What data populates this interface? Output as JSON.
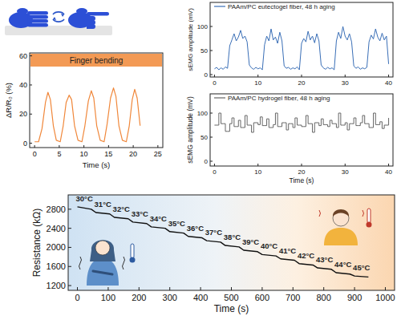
{
  "chart_data": [
    {
      "type": "line",
      "annotation": "Finger bending",
      "x_label": "Time (s)",
      "y_label": "ΔR/R₀ (%)",
      "xlim": [
        -1,
        26
      ],
      "xticks": [
        0,
        5,
        10,
        15,
        20,
        25
      ],
      "ylim": [
        -3,
        62
      ],
      "yticks": [
        0,
        20,
        40,
        60
      ],
      "series": [
        {
          "color": "#f0873a",
          "x": [
            0,
            0.8,
            1.5,
            2.2,
            2.7,
            3.2,
            3.8,
            4.4,
            5.2,
            5.8,
            6.4,
            7.0,
            7.5,
            8.1,
            8.8,
            9.6,
            10.2,
            10.9,
            11.5,
            12.0,
            12.6,
            13.3,
            14.1,
            14.7,
            15.4,
            16.0,
            16.5,
            17.1,
            17.8,
            18.6,
            19.2,
            19.8,
            20.3,
            20.8,
            21.4
          ],
          "values": [
            1,
            1,
            10,
            28,
            35,
            30,
            12,
            2,
            1,
            12,
            28,
            33,
            30,
            12,
            2,
            1,
            12,
            29,
            36,
            31,
            12,
            2,
            1,
            13,
            31,
            38,
            32,
            12,
            2,
            1,
            12,
            30,
            37,
            31,
            12
          ]
        }
      ]
    },
    {
      "type": "line",
      "y_label": "sEMG amplitude (mV)",
      "legend": "upper left",
      "xlim": [
        -1,
        41
      ],
      "xticks": [
        0,
        10,
        20,
        30,
        40
      ],
      "ylim": [
        -5,
        150
      ],
      "yticks": [
        0,
        50,
        100
      ],
      "series": [
        {
          "name": "PAAm/PC eutectogel fiber, 48 h aging",
          "color": "#3a6fb7",
          "x": [
            0,
            0.5,
            1,
            1.5,
            2,
            2.5,
            3,
            3.5,
            4,
            4.5,
            5,
            5.5,
            6,
            6.5,
            7,
            7.5,
            8,
            8.5,
            9,
            9.5,
            10,
            10.5,
            11,
            11.5,
            12,
            12.5,
            13,
            13.5,
            14,
            14.5,
            15,
            15.5,
            16,
            16.5,
            17,
            17.5,
            18,
            18.5,
            19,
            19.5,
            20,
            20.5,
            21,
            21.5,
            22,
            22.5,
            23,
            23.5,
            24,
            24.5,
            25,
            25.5,
            26,
            26.5,
            27,
            27.5,
            28,
            28.5,
            29,
            29.5,
            30,
            30.5,
            31,
            31.5,
            32,
            32.5,
            33,
            33.5,
            34,
            34.5,
            35,
            35.5,
            36,
            36.5,
            37,
            37.5,
            38,
            38.5,
            39,
            39.5,
            40
          ],
          "values": [
            12,
            15,
            10,
            14,
            11,
            16,
            13,
            60,
            72,
            85,
            70,
            78,
            92,
            75,
            80,
            68,
            20,
            14,
            11,
            15,
            12,
            14,
            10,
            62,
            80,
            70,
            95,
            72,
            78,
            65,
            88,
            70,
            18,
            13,
            15,
            11,
            14,
            12,
            16,
            10,
            65,
            75,
            68,
            90,
            72,
            80,
            66,
            85,
            70,
            20,
            14,
            11,
            15,
            12,
            14,
            10,
            70,
            88,
            75,
            100,
            80,
            72,
            85,
            68,
            18,
            13,
            16,
            11,
            14,
            12,
            15,
            68,
            82,
            74,
            95,
            78,
            70,
            86,
            72,
            80,
            22
          ]
        }
      ]
    },
    {
      "type": "line",
      "x_label": "Time (s)",
      "y_label": "sEMG amplitude (mV)",
      "legend": "upper left",
      "xlim": [
        -1,
        41
      ],
      "xticks": [
        0,
        10,
        20,
        30,
        40
      ],
      "ylim": [
        -10,
        140
      ],
      "yticks": [
        0,
        50,
        100
      ],
      "series": [
        {
          "name": "PAAm/PC hydrogel fiber, 48 h aging",
          "color": "#666666",
          "line_style": "step",
          "x": [
            0,
            0.5,
            1,
            1.5,
            2,
            2.5,
            3,
            3.5,
            4,
            4.5,
            5,
            5.5,
            6,
            6.5,
            7,
            7.5,
            8,
            8.5,
            9,
            9.5,
            10,
            10.5,
            11,
            11.5,
            12,
            12.5,
            13,
            13.5,
            14,
            14.5,
            15,
            15.5,
            16,
            16.5,
            17,
            17.5,
            18,
            18.5,
            19,
            19.5,
            20,
            20.5,
            21,
            21.5,
            22,
            22.5,
            23,
            23.5,
            24,
            24.5,
            25,
            25.5,
            26,
            26.5,
            27,
            27.5,
            28,
            28.5,
            29,
            29.5,
            30,
            30.5,
            31,
            31.5,
            32,
            32.5,
            33,
            33.5,
            34,
            34.5,
            35,
            35.5,
            36,
            36.5,
            37,
            37.5,
            38,
            38.5,
            39,
            39.5,
            40
          ],
          "values": [
            75,
            75,
            100,
            78,
            78,
            62,
            62,
            78,
            90,
            72,
            72,
            85,
            70,
            70,
            95,
            75,
            75,
            60,
            80,
            80,
            76,
            92,
            74,
            74,
            88,
            70,
            70,
            76,
            100,
            72,
            72,
            80,
            80,
            65,
            78,
            78,
            70,
            90,
            75,
            75,
            72,
            72,
            95,
            78,
            78,
            60,
            80,
            80,
            74,
            88,
            76,
            76,
            72,
            85,
            78,
            78,
            70,
            100,
            75,
            75,
            80,
            65,
            78,
            78,
            90,
            74,
            74,
            80,
            95,
            78,
            78,
            70,
            70,
            100,
            76,
            76,
            82,
            68,
            75,
            75,
            90
          ]
        }
      ]
    },
    {
      "type": "line",
      "x_label": "Time (s)",
      "y_label": "Resistance (kΩ)",
      "xlim": [
        -30,
        1030
      ],
      "xticks": [
        0,
        100,
        200,
        300,
        400,
        500,
        600,
        700,
        800,
        900,
        1000
      ],
      "ylim": [
        1100,
        3100
      ],
      "yticks": [
        1200,
        1600,
        2000,
        2400,
        2800
      ],
      "annotations": [
        "30°C",
        "31°C",
        "32°C",
        "33°C",
        "34°C",
        "35°C",
        "36°C",
        "37°C",
        "38°C",
        "39°C",
        "40°C",
        "41°C",
        "42°C",
        "43°C",
        "44°C",
        "45°C"
      ],
      "series": [
        {
          "color": "#111111",
          "x": [
            0,
            45,
            60,
            105,
            120,
            165,
            180,
            225,
            240,
            285,
            300,
            345,
            360,
            405,
            420,
            465,
            480,
            525,
            540,
            585,
            600,
            645,
            660,
            705,
            720,
            765,
            780,
            825,
            840,
            885,
            900,
            945
          ],
          "values": [
            2850,
            2800,
            2730,
            2700,
            2630,
            2600,
            2530,
            2500,
            2430,
            2400,
            2330,
            2300,
            2230,
            2200,
            2140,
            2110,
            2040,
            2010,
            1940,
            1910,
            1850,
            1820,
            1760,
            1730,
            1660,
            1630,
            1570,
            1540,
            1470,
            1440,
            1400,
            1380
          ]
        }
      ]
    }
  ]
}
